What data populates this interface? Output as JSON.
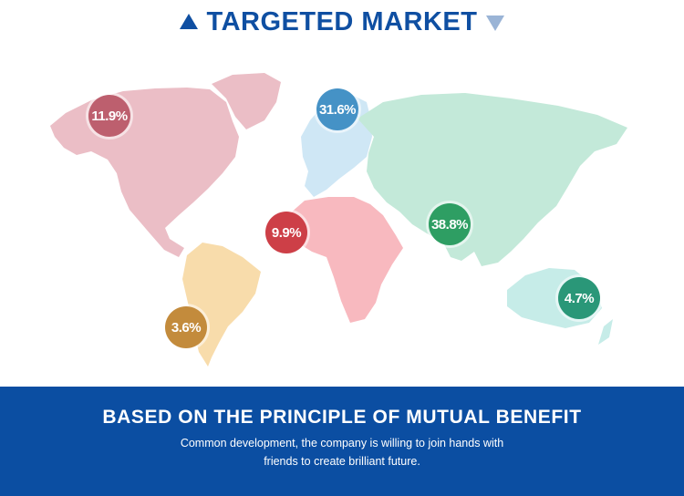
{
  "header": {
    "title": "TARGETED MARKET"
  },
  "map": {
    "regions": [
      {
        "id": "north-america",
        "color": "#ebbec6",
        "bubble_color": "#bd5f6e",
        "share": "11.9%"
      },
      {
        "id": "europe",
        "color": "#cfe7f5",
        "bubble_color": "#4592c6",
        "share": "31.6%"
      },
      {
        "id": "africa",
        "color": "#f8b9bf",
        "bubble_color": "#cd3f47",
        "share": "9.9%"
      },
      {
        "id": "asia",
        "color": "#c3e9d9",
        "bubble_color": "#2e9e63",
        "share": "38.8%"
      },
      {
        "id": "south-america",
        "color": "#f8dcab",
        "bubble_color": "#c38b3c",
        "share": "3.6%"
      },
      {
        "id": "oceania",
        "color": "#c6ece8",
        "bubble_color": "#2a9778",
        "share": "4.7%"
      }
    ]
  },
  "footer": {
    "title": "BASED ON THE PRINCIPLE OF MUTUAL BENEFIT",
    "subtitle_line1": "Common development, the company is willing to join hands with",
    "subtitle_line2": "friends to create brilliant future."
  }
}
